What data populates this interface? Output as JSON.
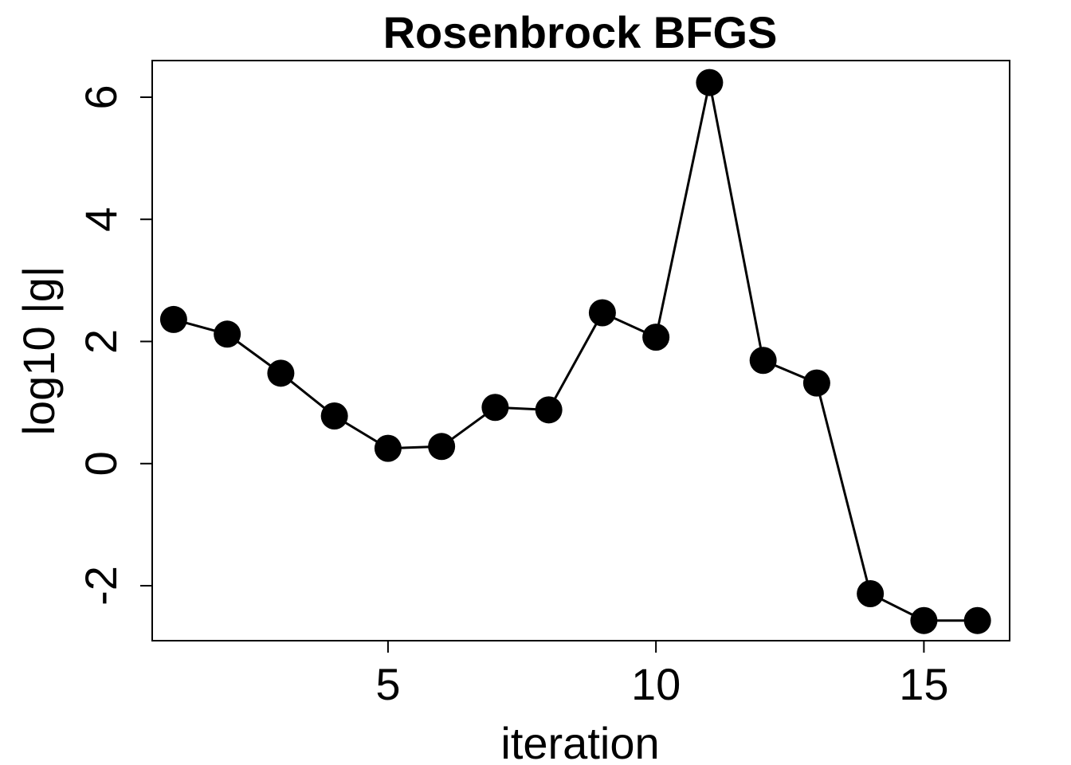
{
  "chart_data": {
    "type": "line",
    "title": "Rosenbrock BFGS",
    "xlabel": "iteration",
    "ylabel": "log10 |g|",
    "xlim": [
      0.6,
      16.6
    ],
    "ylim": [
      -2.9,
      6.6
    ],
    "xticks": [
      5,
      10,
      15
    ],
    "xtick_labels": [
      "5",
      "10",
      "15"
    ],
    "yticks": [
      -2,
      0,
      2,
      4,
      6
    ],
    "ytick_labels": [
      "-2",
      "0",
      "2",
      "4",
      "6"
    ],
    "grid": false,
    "legend": false,
    "marker": "filled-circle",
    "color": "#000000",
    "series": [
      {
        "x": [
          1,
          2,
          3,
          4,
          5,
          6,
          7,
          8,
          9,
          10,
          11,
          12,
          13,
          14,
          15,
          16
        ],
        "y": [
          2.36,
          2.12,
          1.48,
          0.78,
          0.25,
          0.28,
          0.92,
          0.88,
          2.47,
          2.07,
          6.24,
          1.69,
          1.32,
          -2.13,
          -2.57,
          -2.57
        ]
      }
    ]
  }
}
